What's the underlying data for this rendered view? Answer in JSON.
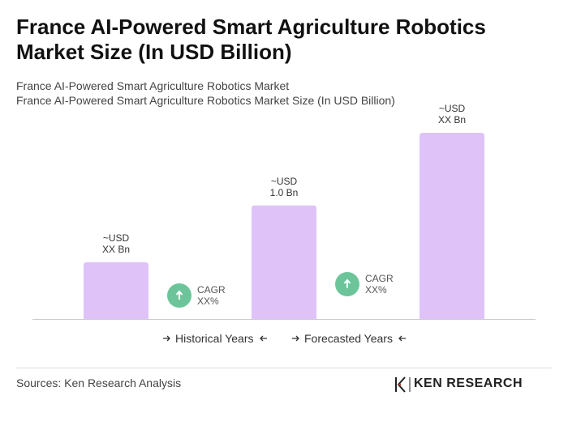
{
  "title": "France AI-Powered Smart Agriculture Robotics Market Size (In USD Billion)",
  "subtitle": [
    "France AI-Powered Smart Agriculture Robotics Market",
    "France AI-Powered Smart Agriculture Robotics Market Size (In USD Billion)"
  ],
  "chart_data": {
    "type": "bar",
    "values": [
      0.5,
      1.0,
      1.64
    ],
    "value_labels": [
      "~USD\nXX Bn",
      "~USD\n1.0 Bn",
      "~USD\nXX Bn"
    ],
    "color": "#dfc3f8",
    "annotations": [
      "CAGR\nXX%",
      "CAGR\nXX%"
    ],
    "legend": [
      "Historical Years",
      "Forecasted Years"
    ]
  },
  "source": "Sources: Ken Research Analysis",
  "logo": "KEN RESEARCH"
}
